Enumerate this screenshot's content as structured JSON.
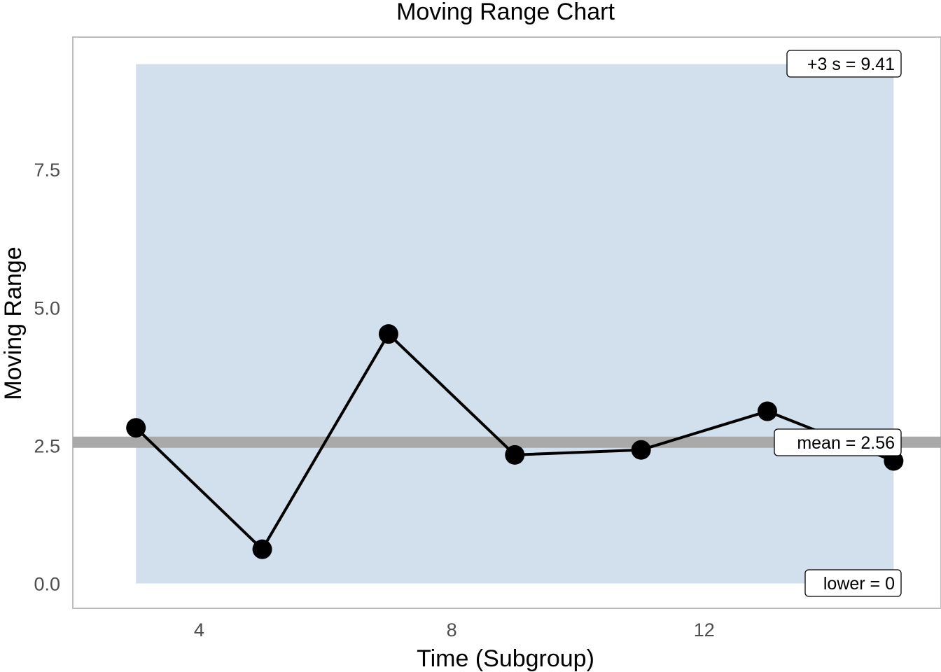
{
  "chart_data": {
    "type": "line",
    "title": "Moving Range Chart",
    "xlabel": "Time (Subgroup)",
    "ylabel": "Moving Range",
    "x": [
      3,
      5,
      7,
      9,
      11,
      13,
      15
    ],
    "y": [
      2.82,
      0.62,
      4.52,
      2.33,
      2.42,
      3.12,
      2.22
    ],
    "xlim": [
      2.0,
      15.75
    ],
    "ylim": [
      -0.45,
      9.9
    ],
    "xticks": [
      4,
      8,
      12
    ],
    "yticks": [
      0.0,
      2.5,
      5.0,
      7.5
    ],
    "ytick_labels": [
      "0.0",
      "2.5",
      "5.0",
      "7.5"
    ],
    "band": {
      "x_start": 3,
      "x_end": 15,
      "lower": 0,
      "upper": 9.41,
      "color": "#d2dfec"
    },
    "mean_line": {
      "value": 2.56,
      "color": "#a9a9a9"
    },
    "annotations": {
      "upper": "+3 s = 9.41",
      "mean": "mean = 2.56",
      "lower": "lower = 0"
    },
    "grid": false,
    "line_color": "#000000",
    "point_color": "#000000",
    "panel_border_color": "#bdbdbd"
  }
}
